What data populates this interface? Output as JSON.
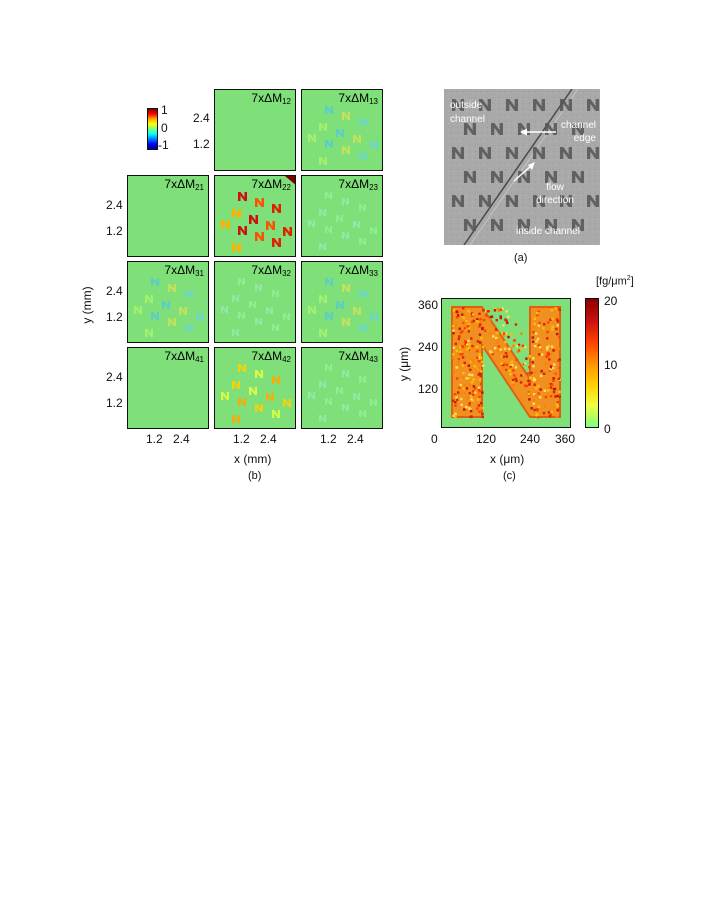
{
  "figure_b": {
    "panel_titles": {
      "m12": {
        "prefix": "7xΔM",
        "sub": "12"
      },
      "m13": {
        "prefix": "7xΔM",
        "sub": "13"
      },
      "m21": {
        "prefix": "7xΔM",
        "sub": "21"
      },
      "m22": {
        "prefix": "7xΔM",
        "sub": "22"
      },
      "m23": {
        "prefix": "7xΔM",
        "sub": "23"
      },
      "m31": {
        "prefix": "7xΔM",
        "sub": "31"
      },
      "m32": {
        "prefix": "7xΔM",
        "sub": "32"
      },
      "m33": {
        "prefix": "7xΔM",
        "sub": "33"
      },
      "m41": {
        "prefix": "7xΔM",
        "sub": "41"
      },
      "m42": {
        "prefix": "7xΔM",
        "sub": "42"
      },
      "m43": {
        "prefix": "7xΔM",
        "sub": "43"
      }
    },
    "colorbar_ticks": [
      "1",
      "0",
      "-1"
    ],
    "y_ticks": [
      "2.4",
      "1.2"
    ],
    "x_ticks": [
      "1.2",
      "2.4"
    ],
    "xlabel": "x (mm)",
    "ylabel": "y (mm)",
    "label": "(b)"
  },
  "figure_a": {
    "annotations": {
      "outside": "outside\nchannel",
      "edge": "channel\nedge",
      "flow": "flow\ndirection",
      "inside": "inside channel"
    },
    "label": "(a)"
  },
  "figure_c": {
    "colorbar_unit": "[fg/μm²]",
    "colorbar_ticks": [
      "20",
      "10",
      "0"
    ],
    "y_ticks": [
      "360",
      "240",
      "120",
      "0"
    ],
    "x_ticks": [
      "120",
      "240",
      "360"
    ],
    "xlabel": "x (μm)",
    "ylabel": "y (μm)",
    "label": "(c)"
  },
  "colors": {
    "background_green": "#7fe07a",
    "n_fill": "#f0a020"
  }
}
